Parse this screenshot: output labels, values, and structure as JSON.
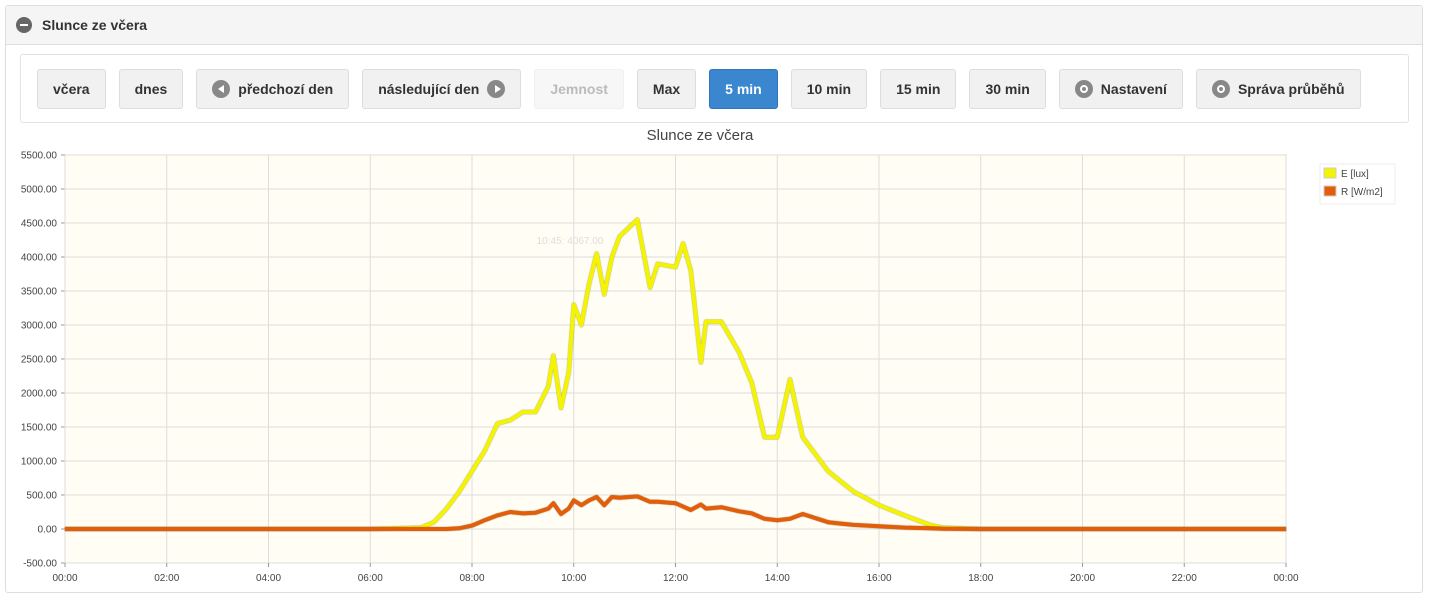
{
  "panel": {
    "title": "Slunce ze včera"
  },
  "toolbar": {
    "buttons": [
      "včera",
      "dnes",
      "předchozí den",
      "následující den",
      "Jemnost",
      "Max",
      "5 min",
      "10 min",
      "15 min",
      "30 min",
      "Nastavení",
      "Správa průběhů"
    ]
  },
  "chart_data": {
    "type": "line",
    "title": "Slunce ze včera",
    "annotation": "10:45: 4067.00",
    "x": [
      0,
      6,
      7,
      7.25,
      7.5,
      7.75,
      8,
      8.25,
      8.5,
      8.75,
      9,
      9.25,
      9.5,
      9.6,
      9.75,
      9.9,
      10,
      10.15,
      10.3,
      10.45,
      10.6,
      10.75,
      10.9,
      11.25,
      11.5,
      11.65,
      12,
      12.15,
      12.3,
      12.5,
      12.6,
      12.9,
      13.25,
      13.5,
      13.75,
      14,
      14.25,
      14.5,
      15,
      15.25,
      15.5,
      16,
      16.5,
      17,
      17.25,
      18,
      24
    ],
    "xlim": [
      0,
      24
    ],
    "xticks": [
      {
        "value": 0,
        "label": "00:00"
      },
      {
        "value": 2,
        "label": "02:00"
      },
      {
        "value": 4,
        "label": "04:00"
      },
      {
        "value": 6,
        "label": "06:00"
      },
      {
        "value": 8,
        "label": "08:00"
      },
      {
        "value": 10,
        "label": "10:00"
      },
      {
        "value": 12,
        "label": "12:00"
      },
      {
        "value": 14,
        "label": "14:00"
      },
      {
        "value": 16,
        "label": "16:00"
      },
      {
        "value": 18,
        "label": "18:00"
      },
      {
        "value": 20,
        "label": "20:00"
      },
      {
        "value": 22,
        "label": "22:00"
      },
      {
        "value": 24,
        "label": "00:00"
      }
    ],
    "ylim": [
      -500,
      5500
    ],
    "yticks": [
      {
        "value": -500,
        "label": "-500.00"
      },
      {
        "value": 0,
        "label": "0.00"
      },
      {
        "value": 500,
        "label": "500.00"
      },
      {
        "value": 1000,
        "label": "1000.00"
      },
      {
        "value": 1500,
        "label": "1500.00"
      },
      {
        "value": 2000,
        "label": "2000.00"
      },
      {
        "value": 2500,
        "label": "2500.00"
      },
      {
        "value": 3000,
        "label": "3000.00"
      },
      {
        "value": 3500,
        "label": "3500.00"
      },
      {
        "value": 4000,
        "label": "4000.00"
      },
      {
        "value": 4500,
        "label": "4500.00"
      },
      {
        "value": 5000,
        "label": "5000.00"
      },
      {
        "value": 5500,
        "label": "5500.00"
      }
    ],
    "grid": true,
    "legend": "right",
    "series": [
      {
        "name": "E [lux]",
        "color": "#f4f400",
        "values": [
          0,
          0,
          20,
          100,
          300,
          550,
          850,
          1150,
          1550,
          1600,
          1720,
          1720,
          2100,
          2550,
          1780,
          2300,
          3300,
          3000,
          3600,
          4050,
          3450,
          4000,
          4300,
          4550,
          3550,
          3900,
          3850,
          4200,
          3800,
          2450,
          3050,
          3050,
          2600,
          2150,
          1350,
          1350,
          2200,
          1350,
          850,
          700,
          550,
          350,
          200,
          60,
          20,
          0,
          0
        ]
      },
      {
        "name": "R [W/m2]",
        "color": "#e35d0a",
        "values": [
          0,
          0,
          0,
          0,
          0,
          10,
          50,
          130,
          200,
          250,
          230,
          240,
          300,
          380,
          220,
          300,
          420,
          350,
          420,
          470,
          350,
          470,
          460,
          480,
          400,
          400,
          380,
          330,
          280,
          360,
          300,
          320,
          260,
          230,
          150,
          130,
          150,
          220,
          100,
          80,
          60,
          40,
          20,
          10,
          5,
          0,
          0
        ]
      }
    ]
  }
}
